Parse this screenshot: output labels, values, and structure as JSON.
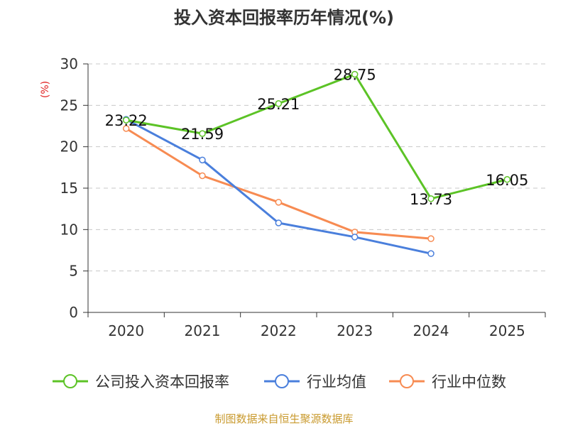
{
  "chart_data": {
    "type": "line",
    "title": "投入资本回报率历年情况(%)",
    "ylabel": "(%)",
    "xlabel": "",
    "categories": [
      "2020",
      "2021",
      "2022",
      "2023",
      "2024",
      "2025"
    ],
    "ylim": [
      0,
      30
    ],
    "yticks": [
      0,
      5,
      10,
      15,
      20,
      25,
      30
    ],
    "grid": true,
    "legend_position": "bottom",
    "series": [
      {
        "name": "公司投入资本回报率",
        "color": "#5cc326",
        "values": [
          23.22,
          21.59,
          25.21,
          28.75,
          13.73,
          16.05
        ],
        "labels": [
          "23.22",
          "21.59",
          "25.21",
          "28.75",
          "13.73",
          "16.05"
        ]
      },
      {
        "name": "行业均值",
        "color": "#4a7fdc",
        "values": [
          23.3,
          18.4,
          10.8,
          9.1,
          7.1,
          null
        ]
      },
      {
        "name": "行业中位数",
        "color": "#f78b52",
        "values": [
          22.2,
          16.5,
          13.3,
          9.7,
          8.9,
          null
        ]
      }
    ]
  },
  "source": "制图数据来自恒生聚源数据库"
}
